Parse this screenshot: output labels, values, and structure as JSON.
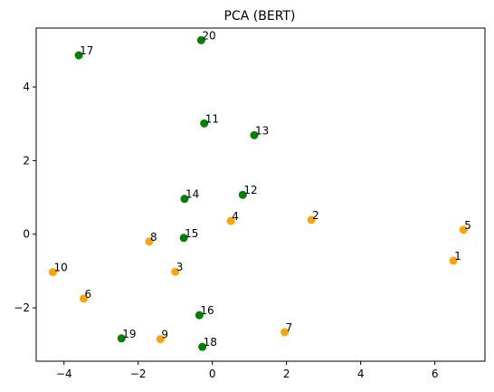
{
  "chart_data": {
    "type": "scatter",
    "title": "PCA (BERT)",
    "xlabel": "",
    "ylabel": "",
    "xlim": [
      -4.75,
      7.35
    ],
    "ylim": [
      -3.45,
      5.6
    ],
    "xticks": [
      -4,
      -2,
      0,
      2,
      4,
      6
    ],
    "yticks": [
      -2,
      0,
      2,
      4
    ],
    "xtick_labels": [
      "−4",
      "−2",
      "0",
      "2",
      "4",
      "6"
    ],
    "ytick_labels": [
      "−2",
      "0",
      "2",
      "4"
    ],
    "grid": false,
    "colors": {
      "orange": "#ffa500",
      "green": "#008000"
    },
    "points": [
      {
        "label": "1",
        "x": 6.5,
        "y": -0.72,
        "color": "orange"
      },
      {
        "label": "2",
        "x": 2.67,
        "y": 0.39,
        "color": "orange"
      },
      {
        "label": "3",
        "x": -1.0,
        "y": -1.02,
        "color": "orange"
      },
      {
        "label": "4",
        "x": 0.5,
        "y": 0.36,
        "color": "orange"
      },
      {
        "label": "5",
        "x": 6.77,
        "y": 0.12,
        "color": "orange"
      },
      {
        "label": "6",
        "x": -3.47,
        "y": -1.75,
        "color": "orange"
      },
      {
        "label": "7",
        "x": 1.95,
        "y": -2.66,
        "color": "orange"
      },
      {
        "label": "8",
        "x": -1.7,
        "y": -0.2,
        "color": "orange"
      },
      {
        "label": "9",
        "x": -1.4,
        "y": -2.85,
        "color": "orange"
      },
      {
        "label": "10",
        "x": -4.3,
        "y": -1.03,
        "color": "orange"
      },
      {
        "label": "11",
        "x": -0.22,
        "y": 3.01,
        "color": "green"
      },
      {
        "label": "12",
        "x": 0.82,
        "y": 1.07,
        "color": "green"
      },
      {
        "label": "13",
        "x": 1.13,
        "y": 2.69,
        "color": "green"
      },
      {
        "label": "14",
        "x": -0.75,
        "y": 0.96,
        "color": "green"
      },
      {
        "label": "15",
        "x": -0.77,
        "y": -0.1,
        "color": "green"
      },
      {
        "label": "16",
        "x": -0.35,
        "y": -2.2,
        "color": "green"
      },
      {
        "label": "17",
        "x": -3.6,
        "y": 4.86,
        "color": "green"
      },
      {
        "label": "18",
        "x": -0.27,
        "y": -3.06,
        "color": "green"
      },
      {
        "label": "19",
        "x": -2.45,
        "y": -2.83,
        "color": "green"
      },
      {
        "label": "20",
        "x": -0.3,
        "y": 5.27,
        "color": "green"
      }
    ]
  }
}
